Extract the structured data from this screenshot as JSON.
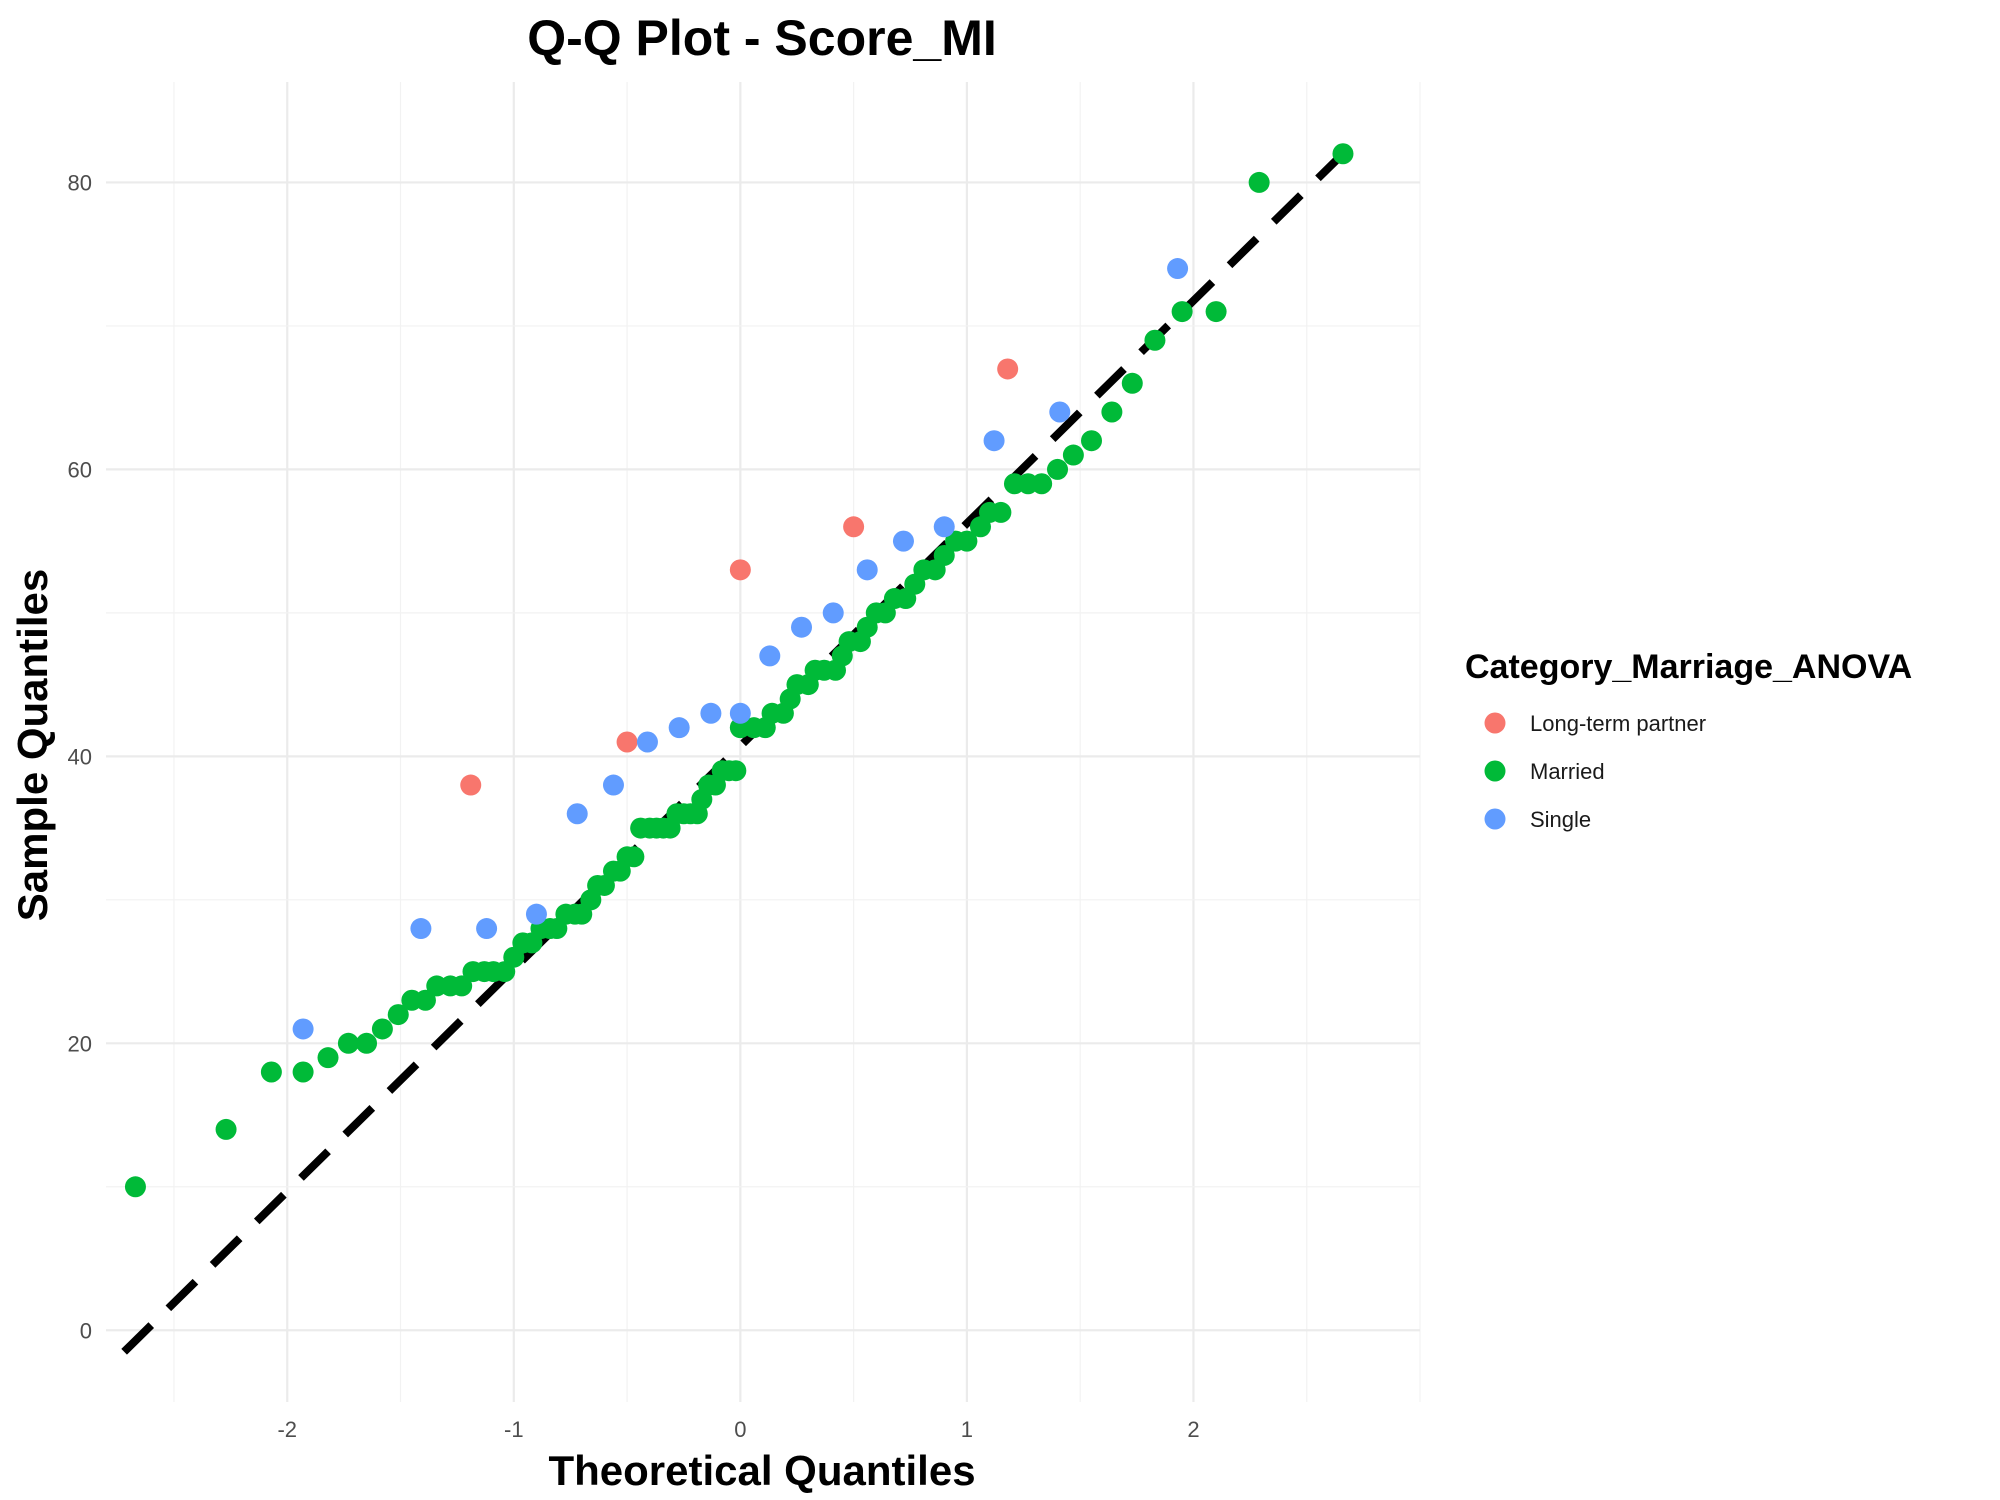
{
  "chart_data": {
    "type": "scatter",
    "title": "Q-Q Plot -  Score_MI",
    "xlabel": "Theoretical Quantiles",
    "ylabel": "Sample Quantiles",
    "xlim": [
      -2.8,
      3.0
    ],
    "ylim": [
      -5,
      87
    ],
    "x_ticks": [
      -2,
      -1,
      0,
      1,
      2
    ],
    "y_ticks": [
      0,
      20,
      40,
      60,
      80
    ],
    "x_tick_labels": [
      "-2",
      "-1",
      "0",
      "1",
      "2"
    ],
    "y_tick_labels": [
      "0",
      "20",
      "40",
      "60",
      "80"
    ],
    "grid": true,
    "legend": {
      "title": "Category_Marriage_ANOVA",
      "position": "right"
    },
    "reference_line": {
      "style": "dashed",
      "color": "#000000",
      "x": [
        -2.72,
        2.66
      ],
      "y": [
        -1.5,
        82
      ]
    },
    "series": [
      {
        "name": "Long-term partner",
        "color": "#F8766D",
        "points": [
          [
            -1.19,
            38
          ],
          [
            -0.5,
            41
          ],
          [
            0.0,
            53
          ],
          [
            0.5,
            56
          ],
          [
            1.18,
            67
          ]
        ]
      },
      {
        "name": "Married",
        "color": "#00BA38",
        "points": [
          [
            -2.67,
            10
          ],
          [
            -2.27,
            14
          ],
          [
            -2.07,
            18
          ],
          [
            -1.93,
            18
          ],
          [
            -1.82,
            19
          ],
          [
            -1.73,
            20
          ],
          [
            -1.65,
            20
          ],
          [
            -1.58,
            21
          ],
          [
            -1.51,
            22
          ],
          [
            -1.45,
            23
          ],
          [
            -1.39,
            23
          ],
          [
            -1.34,
            24
          ],
          [
            -1.28,
            24
          ],
          [
            -1.23,
            24
          ],
          [
            -1.18,
            25
          ],
          [
            -1.13,
            25
          ],
          [
            -1.09,
            25
          ],
          [
            -1.04,
            25
          ],
          [
            -1.0,
            26
          ],
          [
            -0.96,
            27
          ],
          [
            -0.92,
            27
          ],
          [
            -0.88,
            28
          ],
          [
            -0.84,
            28
          ],
          [
            -0.81,
            28
          ],
          [
            -0.77,
            29
          ],
          [
            -0.73,
            29
          ],
          [
            -0.7,
            29
          ],
          [
            -0.66,
            30
          ],
          [
            -0.63,
            31
          ],
          [
            -0.6,
            31
          ],
          [
            -0.56,
            32
          ],
          [
            -0.53,
            32
          ],
          [
            -0.5,
            33
          ],
          [
            -0.47,
            33
          ],
          [
            -0.44,
            35
          ],
          [
            -0.4,
            35
          ],
          [
            -0.37,
            35
          ],
          [
            -0.34,
            35
          ],
          [
            -0.31,
            35
          ],
          [
            -0.28,
            36
          ],
          [
            -0.25,
            36
          ],
          [
            -0.22,
            36
          ],
          [
            -0.19,
            36
          ],
          [
            -0.17,
            37
          ],
          [
            -0.14,
            38
          ],
          [
            -0.11,
            38
          ],
          [
            -0.08,
            39
          ],
          [
            -0.05,
            39
          ],
          [
            -0.02,
            39
          ],
          [
            0.0,
            42
          ],
          [
            0.06,
            42
          ],
          [
            0.11,
            42
          ],
          [
            0.14,
            43
          ],
          [
            0.19,
            43
          ],
          [
            0.22,
            44
          ],
          [
            0.25,
            45
          ],
          [
            0.3,
            45
          ],
          [
            0.33,
            46
          ],
          [
            0.37,
            46
          ],
          [
            0.42,
            46
          ],
          [
            0.45,
            47
          ],
          [
            0.48,
            48
          ],
          [
            0.53,
            48
          ],
          [
            0.56,
            49
          ],
          [
            0.6,
            50
          ],
          [
            0.64,
            50
          ],
          [
            0.68,
            51
          ],
          [
            0.73,
            51
          ],
          [
            0.77,
            52
          ],
          [
            0.81,
            53
          ],
          [
            0.86,
            53
          ],
          [
            0.9,
            54
          ],
          [
            0.95,
            55
          ],
          [
            1.0,
            55
          ],
          [
            1.06,
            56
          ],
          [
            1.1,
            57
          ],
          [
            1.15,
            57
          ],
          [
            1.21,
            59
          ],
          [
            1.27,
            59
          ],
          [
            1.33,
            59
          ],
          [
            1.4,
            60
          ],
          [
            1.47,
            61
          ],
          [
            1.55,
            62
          ],
          [
            1.64,
            64
          ],
          [
            1.73,
            66
          ],
          [
            1.83,
            69
          ],
          [
            1.95,
            71
          ],
          [
            2.1,
            71
          ],
          [
            2.29,
            80
          ],
          [
            2.66,
            82
          ]
        ]
      },
      {
        "name": "Single",
        "color": "#619CFF",
        "points": [
          [
            -1.93,
            21
          ],
          [
            -1.41,
            28
          ],
          [
            -1.12,
            28
          ],
          [
            -0.9,
            29
          ],
          [
            -0.72,
            36
          ],
          [
            -0.56,
            38
          ],
          [
            -0.41,
            41
          ],
          [
            -0.27,
            42
          ],
          [
            -0.13,
            43
          ],
          [
            0.0,
            43
          ],
          [
            0.13,
            47
          ],
          [
            0.27,
            49
          ],
          [
            0.41,
            50
          ],
          [
            0.56,
            53
          ],
          [
            0.72,
            55
          ],
          [
            0.9,
            56
          ],
          [
            1.12,
            62
          ],
          [
            1.41,
            64
          ],
          [
            1.93,
            74
          ]
        ]
      }
    ]
  }
}
